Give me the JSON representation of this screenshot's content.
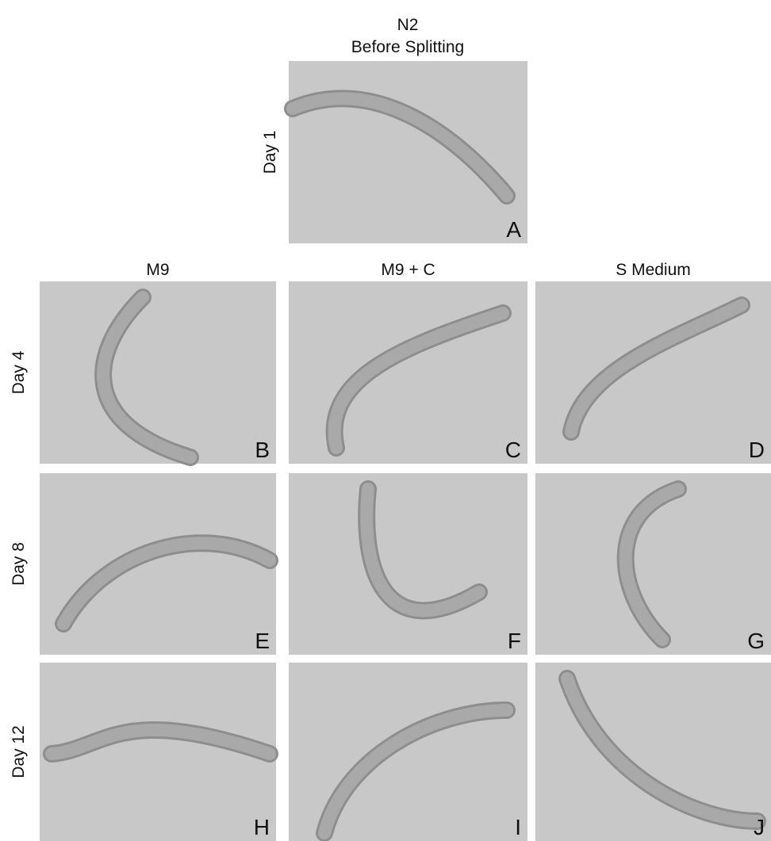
{
  "header": {
    "title": "N2",
    "subtitle": "Before Splitting"
  },
  "top_panel": {
    "row_label": "Day 1",
    "letter": "A"
  },
  "columns": [
    "M9",
    "M9 + C",
    "S Medium"
  ],
  "rows": [
    {
      "label": "Day 4",
      "letters": [
        "B",
        "C",
        "D"
      ]
    },
    {
      "label": "Day 8",
      "letters": [
        "E",
        "F",
        "G"
      ]
    },
    {
      "label": "Day 12",
      "letters": [
        "H",
        "I",
        "J"
      ]
    }
  ]
}
